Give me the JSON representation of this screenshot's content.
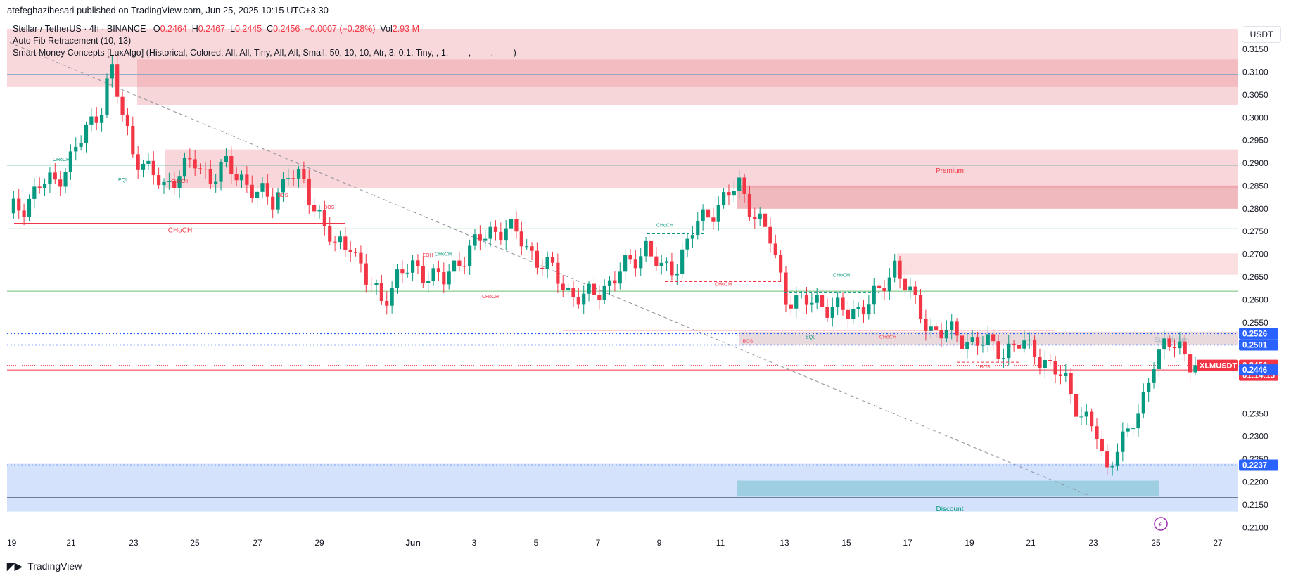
{
  "header": {
    "publisher": "atefeghazihesari published on TradingView.com, Jun 25, 2025 10:15 UTC+3:30"
  },
  "legend": {
    "symbol": "Stellar / TetherUS · 4h · BINANCE",
    "open_label": "O",
    "open": "0.2464",
    "high_label": "H",
    "high": "0.2467",
    "low_label": "L",
    "low": "0.2445",
    "close_label": "C",
    "close": "0.2456",
    "change": "−0.0007 (−0.28%)",
    "vol_label": "Vol",
    "vol": "2.93 M",
    "indicator1": "Auto Fib Retracement (10, 13)",
    "indicator2": "Smart Money Concepts [LuxAlgo] (Historical, Colored, All, All, Tiny, All, All, Small, 50, 10, 10, Atr, 3, 0.1, Tiny, , 1, ——, ——, ——)"
  },
  "currency": "USDT",
  "footer": {
    "brand": "TradingView"
  },
  "colors": {
    "up": "#089981",
    "down": "#f23645",
    "premium_zone": "#f7c8cc",
    "discount_zone": "#c9dbfb",
    "ob_bear": "#e58a93",
    "ob_bull": "#8ec9d9",
    "blue_line": "#2962ff",
    "green_line": "#4caf50"
  },
  "chart_data": {
    "type": "candlestick",
    "symbol": "XLMUSDT",
    "timeframe": "4h",
    "ylim": [
      0.2085,
      0.3215
    ],
    "y_ticks": [
      "0.3150",
      "0.3100",
      "0.3050",
      "0.3000",
      "0.2950",
      "0.2900",
      "0.2850",
      "0.2800",
      "0.2750",
      "0.2700",
      "0.2650",
      "0.2600",
      "0.2550",
      "0.2350",
      "0.2300",
      "0.2250",
      "0.2200",
      "0.2150",
      "0.2100"
    ],
    "x_ticks": [
      "19",
      "21",
      "23",
      "25",
      "27",
      "29",
      "Jun",
      "3",
      "5",
      "7",
      "9",
      "11",
      "13",
      "15",
      "17",
      "19",
      "21",
      "23",
      "25",
      "27"
    ],
    "close_path": [
      {
        "d": 0.0,
        "c": 0.279
      },
      {
        "d": 0.5,
        "c": 0.281
      },
      {
        "d": 1.0,
        "c": 0.285
      },
      {
        "d": 1.5,
        "c": 0.286
      },
      {
        "d": 2.0,
        "c": 0.291
      },
      {
        "d": 2.5,
        "c": 0.297
      },
      {
        "d": 3.0,
        "c": 0.303
      },
      {
        "d": 3.3,
        "c": 0.311
      },
      {
        "d": 3.6,
        "c": 0.302
      },
      {
        "d": 4.0,
        "c": 0.293
      },
      {
        "d": 4.5,
        "c": 0.288
      },
      {
        "d": 5.0,
        "c": 0.285
      },
      {
        "d": 5.5,
        "c": 0.288
      },
      {
        "d": 6.0,
        "c": 0.29
      },
      {
        "d": 6.5,
        "c": 0.287
      },
      {
        "d": 7.0,
        "c": 0.289
      },
      {
        "d": 7.5,
        "c": 0.287
      },
      {
        "d": 8.0,
        "c": 0.283
      },
      {
        "d": 8.5,
        "c": 0.282
      },
      {
        "d": 9.0,
        "c": 0.288
      },
      {
        "d": 9.5,
        "c": 0.285
      },
      {
        "d": 10.0,
        "c": 0.279
      },
      {
        "d": 10.5,
        "c": 0.271
      },
      {
        "d": 11.0,
        "c": 0.273
      },
      {
        "d": 11.5,
        "c": 0.264
      },
      {
        "d": 12.0,
        "c": 0.26
      },
      {
        "d": 12.5,
        "c": 0.265
      },
      {
        "d": 13.0,
        "c": 0.267
      },
      {
        "d": 13.5,
        "c": 0.266
      },
      {
        "d": 14.0,
        "c": 0.264
      },
      {
        "d": 14.5,
        "c": 0.269
      },
      {
        "d": 15.0,
        "c": 0.272
      },
      {
        "d": 15.5,
        "c": 0.275
      },
      {
        "d": 16.0,
        "c": 0.276
      },
      {
        "d": 16.5,
        "c": 0.273
      },
      {
        "d": 17.0,
        "c": 0.269
      },
      {
        "d": 17.5,
        "c": 0.266
      },
      {
        "d": 18.0,
        "c": 0.262
      },
      {
        "d": 18.5,
        "c": 0.26
      },
      {
        "d": 19.0,
        "c": 0.262
      },
      {
        "d": 19.5,
        "c": 0.265
      },
      {
        "d": 20.0,
        "c": 0.268
      },
      {
        "d": 20.5,
        "c": 0.272
      },
      {
        "d": 21.0,
        "c": 0.266
      },
      {
        "d": 21.5,
        "c": 0.268
      },
      {
        "d": 22.0,
        "c": 0.275
      },
      {
        "d": 22.5,
        "c": 0.279
      },
      {
        "d": 23.0,
        "c": 0.282
      },
      {
        "d": 23.5,
        "c": 0.285
      },
      {
        "d": 24.0,
        "c": 0.279
      },
      {
        "d": 24.5,
        "c": 0.273
      },
      {
        "d": 25.0,
        "c": 0.261
      },
      {
        "d": 25.5,
        "c": 0.259
      },
      {
        "d": 26.0,
        "c": 0.26
      },
      {
        "d": 26.5,
        "c": 0.258
      },
      {
        "d": 27.0,
        "c": 0.257
      },
      {
        "d": 27.5,
        "c": 0.259
      },
      {
        "d": 28.0,
        "c": 0.261
      },
      {
        "d": 28.5,
        "c": 0.268
      },
      {
        "d": 28.8,
        "c": 0.264
      },
      {
        "d": 29.2,
        "c": 0.258
      },
      {
        "d": 29.6,
        "c": 0.254
      },
      {
        "d": 30.0,
        "c": 0.253
      },
      {
        "d": 30.5,
        "c": 0.252
      },
      {
        "d": 31.0,
        "c": 0.251
      },
      {
        "d": 31.5,
        "c": 0.25
      },
      {
        "d": 32.0,
        "c": 0.249
      },
      {
        "d": 32.5,
        "c": 0.25
      },
      {
        "d": 33.0,
        "c": 0.249
      },
      {
        "d": 33.5,
        "c": 0.245
      },
      {
        "d": 34.0,
        "c": 0.242
      },
      {
        "d": 34.5,
        "c": 0.235
      },
      {
        "d": 35.0,
        "c": 0.23
      },
      {
        "d": 35.3,
        "c": 0.222
      },
      {
        "d": 35.6,
        "c": 0.228
      },
      {
        "d": 36.0,
        "c": 0.23
      },
      {
        "d": 36.4,
        "c": 0.236
      },
      {
        "d": 36.8,
        "c": 0.247
      },
      {
        "d": 37.2,
        "c": 0.249
      },
      {
        "d": 37.6,
        "c": 0.251
      },
      {
        "d": 38.0,
        "c": 0.2464
      },
      {
        "d": 38.2,
        "c": 0.2456
      }
    ],
    "zones": [
      {
        "label": "Premium",
        "from": 0.2845,
        "to": 0.293
      },
      {
        "label": "Equilibrium",
        "from": 0.2502,
        "to": 0.253
      },
      {
        "label": "Discount",
        "from": 0.2135,
        "to": 0.224
      }
    ],
    "structure_labels": [
      "CHoCH",
      "EQL",
      "CHoCH",
      "BOS",
      "BOS",
      "CHoCH",
      "EQH",
      "CHoCH",
      "CHoCH",
      "CHoCH",
      "CHoCH",
      "CHoCH",
      "EQL",
      "CHoCH",
      "BOS",
      "BOS"
    ],
    "price_labels": [
      {
        "text": "0.2526",
        "value": 0.2526,
        "color": "#2962ff"
      },
      {
        "text": "0.2501",
        "value": 0.2501,
        "color": "#2962ff"
      },
      {
        "text": "0.2456",
        "value": 0.2456,
        "color": "#f23645"
      },
      {
        "text": "01:14:15",
        "value": 0.2456,
        "color": "#f23645"
      },
      {
        "text": "0.2446",
        "value": 0.2446,
        "color": "#2962ff"
      },
      {
        "text": "0.2237",
        "value": 0.2237,
        "color": "#2962ff"
      }
    ],
    "symbol_label": "XLMUSDT",
    "horizontal_lines": [
      0.3095,
      0.2896,
      0.2756,
      0.2619,
      0.2166
    ],
    "last_price": 0.2456
  }
}
